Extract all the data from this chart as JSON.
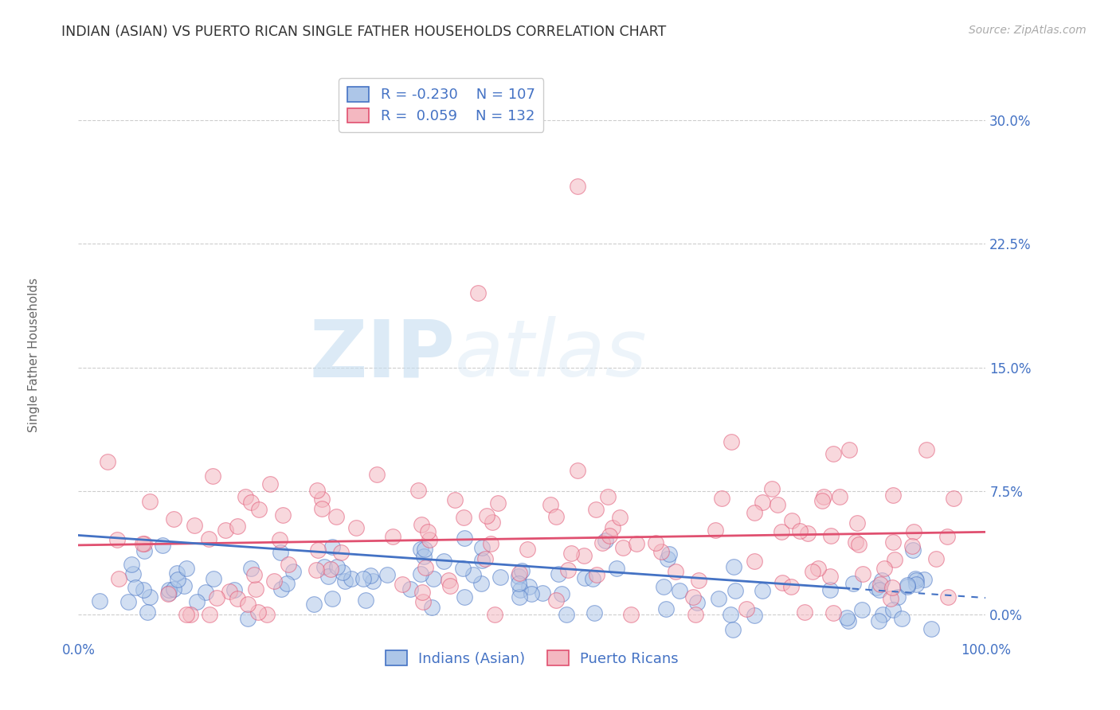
{
  "title": "INDIAN (ASIAN) VS PUERTO RICAN SINGLE FATHER HOUSEHOLDS CORRELATION CHART",
  "source": "Source: ZipAtlas.com",
  "ylabel": "Single Father Households",
  "ytick_labels": [
    "0.0%",
    "7.5%",
    "15.0%",
    "22.5%",
    "30.0%"
  ],
  "ytick_values": [
    0.0,
    7.5,
    15.0,
    22.5,
    30.0
  ],
  "xlim": [
    0,
    100
  ],
  "ylim": [
    -1.5,
    33
  ],
  "title_color": "#333333",
  "source_color": "#aaaaaa",
  "tick_color": "#4472c4",
  "ylabel_color": "#666666",
  "grid_color": "#c8c8c8",
  "legend_labels": [
    "Indians (Asian)",
    "Puerto Ricans"
  ],
  "legend_R": [
    -0.23,
    0.059
  ],
  "legend_N": [
    107,
    132
  ],
  "scatter_color_indian": "#adc6e8",
  "scatter_color_puerto": "#f4b8c1",
  "line_color_indian": "#4472c4",
  "line_color_puerto": "#e05070",
  "watermark_zip": "ZIP",
  "watermark_atlas": "atlas",
  "indian_slope": -0.038,
  "indian_intercept": 4.8,
  "puerto_slope": 0.008,
  "puerto_intercept": 4.2,
  "seed": 99
}
